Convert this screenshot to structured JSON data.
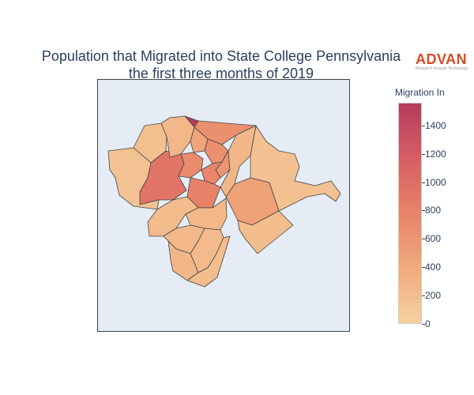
{
  "title": {
    "line1": "Population that Migrated into State College Pennsylvania",
    "line2": "the first three months of 2019"
  },
  "logo": {
    "word": "ADVAN",
    "tagline": "Research through Technology",
    "color": "#d84a23"
  },
  "colorbar": {
    "title": "Migration In",
    "min": 0,
    "max": 1560,
    "ticks": [
      "0",
      "200",
      "400",
      "600",
      "800",
      "1000",
      "1200",
      "1400"
    ],
    "colors": [
      "#f5d2a0",
      "#f1aa7d",
      "#e88368",
      "#d75e65",
      "#b33c5c"
    ]
  },
  "map_data": {
    "regions": [
      {
        "name": "north-tip",
        "value": 1550
      },
      {
        "name": "north-east",
        "value": 650
      },
      {
        "name": "west-diagonal",
        "value": 950
      },
      {
        "name": "center-diamond",
        "value": 700
      },
      {
        "name": "center-north-1",
        "value": 450
      },
      {
        "name": "center-north-2",
        "value": 650
      },
      {
        "name": "center-strip",
        "value": 600
      },
      {
        "name": "center-mid",
        "value": 750
      },
      {
        "name": "center-south-diamond",
        "value": 800
      },
      {
        "name": "east-center",
        "value": 480
      },
      {
        "name": "north-west",
        "value": 180
      },
      {
        "name": "west-fan",
        "value": 160
      },
      {
        "name": "north-mid",
        "value": 250
      },
      {
        "name": "north-east-ridge",
        "value": 260
      },
      {
        "name": "east-large",
        "value": 170
      },
      {
        "name": "south-east",
        "value": 200
      },
      {
        "name": "south-west-1",
        "value": 210
      },
      {
        "name": "south-west-2",
        "value": 250
      },
      {
        "name": "south-1",
        "value": 240
      },
      {
        "name": "south-2",
        "value": 230
      },
      {
        "name": "south-3",
        "value": 260
      },
      {
        "name": "south-tail",
        "value": 200
      }
    ]
  }
}
